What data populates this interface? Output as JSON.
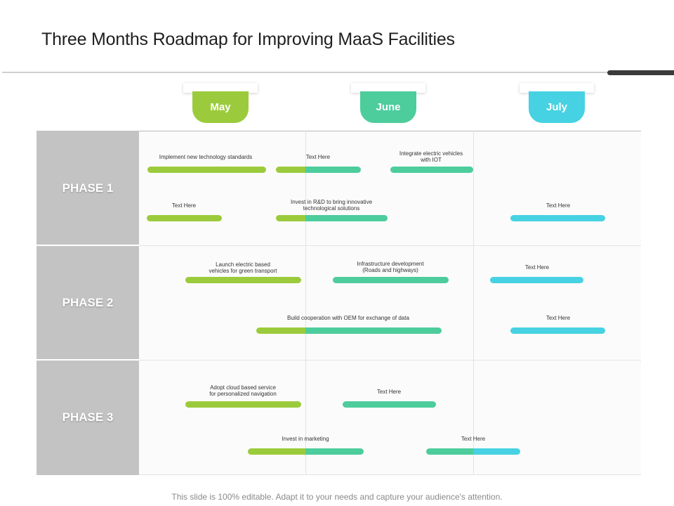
{
  "title": "Three Months Roadmap for Improving MaaS Facilities",
  "colors": {
    "may": "#9bcb3c",
    "june": "#4dcc9c",
    "july": "#46d2e2",
    "phase_bg": "#c3c3c3"
  },
  "months": [
    "May",
    "June",
    "July"
  ],
  "phases": [
    "PHASE 1",
    "PHASE 2",
    "PHASE 3"
  ],
  "tasks": {
    "p1_implement": "Implement  new  technology  standards",
    "p1_text_here_1": "Text Here",
    "p1_integrate": "Integrate  electric vehicles\nwith IOT",
    "p1_text_here_2": "Text Here",
    "p1_invest_rd": "Invest  in R&D to bring innovative\ntechnological  solutions",
    "p1_text_here_3": "Text Here",
    "p2_launch": "Launch  electric based\nvehicles for green transport",
    "p2_infrastructure": "Infrastructure  development\n(Roads and highways)",
    "p2_text_here_1": "Text Here",
    "p2_cooperation": "Build cooperation  with OEM for exchange  of data",
    "p2_text_here_2": "Text Here",
    "p3_cloud": "Adopt  cloud  based service\nfor personalized  navigation",
    "p3_text_here_1": "Text Here",
    "p3_marketing": "Invest  in marketing",
    "p3_text_here_2": "Text Here"
  },
  "footer": "This slide is 100%  editable. Adapt it to your needs and capture your audience's attention."
}
